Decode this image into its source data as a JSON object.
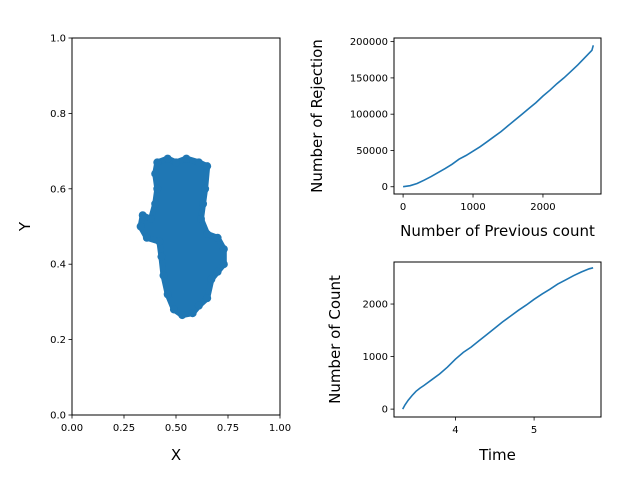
{
  "chart_data": [
    {
      "type": "scatter",
      "xlabel": "X",
      "ylabel": "Y",
      "xlim": [
        0.0,
        1.0
      ],
      "ylim": [
        0.0,
        1.0
      ],
      "xticks": [
        "0.00",
        "0.25",
        "0.50",
        "0.75",
        "1.00"
      ],
      "yticks": [
        "0.0",
        "0.2",
        "0.4",
        "0.6",
        "0.8",
        "1.0"
      ],
      "color": "#1f77b4",
      "cluster_outline": [
        [
          0.38,
          0.52
        ],
        [
          0.4,
          0.56
        ],
        [
          0.41,
          0.6
        ],
        [
          0.4,
          0.64
        ],
        [
          0.41,
          0.67
        ],
        [
          0.46,
          0.68
        ],
        [
          0.5,
          0.67
        ],
        [
          0.55,
          0.68
        ],
        [
          0.61,
          0.67
        ],
        [
          0.65,
          0.66
        ],
        [
          0.64,
          0.6
        ],
        [
          0.63,
          0.56
        ],
        [
          0.62,
          0.52
        ],
        [
          0.65,
          0.48
        ],
        [
          0.7,
          0.47
        ],
        [
          0.73,
          0.44
        ],
        [
          0.73,
          0.4
        ],
        [
          0.7,
          0.38
        ],
        [
          0.67,
          0.36
        ],
        [
          0.65,
          0.31
        ],
        [
          0.61,
          0.29
        ],
        [
          0.58,
          0.27
        ],
        [
          0.53,
          0.265
        ],
        [
          0.49,
          0.28
        ],
        [
          0.46,
          0.32
        ],
        [
          0.44,
          0.37
        ],
        [
          0.43,
          0.42
        ],
        [
          0.42,
          0.46
        ],
        [
          0.36,
          0.47
        ],
        [
          0.33,
          0.5
        ],
        [
          0.34,
          0.53
        ]
      ]
    },
    {
      "type": "line",
      "xlabel": "Number of Previous count",
      "ylabel": "Number of Rejection",
      "xlim": [
        -130,
        2830
      ],
      "ylim": [
        -10000,
        205000
      ],
      "xticks": [
        0,
        1000,
        2000
      ],
      "yticks": [
        0,
        50000,
        100000,
        150000,
        200000
      ],
      "color": "#1f77b4",
      "series": [
        {
          "x": [
            0,
            100,
            200,
            300,
            400,
            500,
            600,
            700,
            800,
            900,
            1000,
            1100,
            1200,
            1300,
            1400,
            1500,
            1600,
            1700,
            1800,
            1900,
            2000,
            2100,
            2200,
            2300,
            2400,
            2500,
            2600,
            2700,
            2720
          ],
          "values": [
            0,
            1500,
            4500,
            9000,
            14000,
            19500,
            25000,
            31000,
            38000,
            43000,
            49000,
            55000,
            62000,
            69000,
            76000,
            84000,
            92000,
            100000,
            108000,
            116000,
            125000,
            133000,
            142000,
            150000,
            159000,
            168000,
            178000,
            188000,
            195000
          ]
        }
      ]
    },
    {
      "type": "line",
      "xlabel": "Time",
      "ylabel": "Number of Count",
      "xlim": [
        3.22,
        5.85
      ],
      "ylim": [
        -150,
        2800
      ],
      "xticks": [
        4,
        5
      ],
      "yticks": [
        0,
        1000,
        2000
      ],
      "color": "#1f77b4",
      "series": [
        {
          "x": [
            3.33,
            3.36,
            3.4,
            3.45,
            3.5,
            3.55,
            3.6,
            3.7,
            3.8,
            3.9,
            4.0,
            4.1,
            4.2,
            4.3,
            4.4,
            4.5,
            4.6,
            4.7,
            4.8,
            4.9,
            5.0,
            5.1,
            5.2,
            5.3,
            5.4,
            5.5,
            5.6,
            5.7,
            5.75
          ],
          "values": [
            0,
            80,
            170,
            260,
            340,
            400,
            450,
            560,
            670,
            800,
            950,
            1080,
            1180,
            1300,
            1420,
            1540,
            1660,
            1770,
            1880,
            1980,
            2090,
            2190,
            2280,
            2380,
            2460,
            2540,
            2610,
            2670,
            2690
          ]
        }
      ]
    }
  ]
}
